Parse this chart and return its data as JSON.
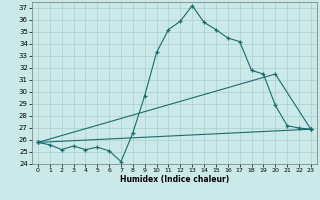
{
  "xlabel": "Humidex (Indice chaleur)",
  "xlim": [
    -0.5,
    23.5
  ],
  "ylim": [
    24,
    37.5
  ],
  "yticks": [
    24,
    25,
    26,
    27,
    28,
    29,
    30,
    31,
    32,
    33,
    34,
    35,
    36,
    37
  ],
  "xticks": [
    0,
    1,
    2,
    3,
    4,
    5,
    6,
    7,
    8,
    9,
    10,
    11,
    12,
    13,
    14,
    15,
    16,
    17,
    18,
    19,
    20,
    21,
    22,
    23
  ],
  "bg_color": "#cce9e9",
  "grid_color": "#aacfcf",
  "line_color": "#1a6b6b",
  "line1_x": [
    0,
    1,
    2,
    3,
    4,
    5,
    6,
    7,
    8,
    9,
    10,
    11,
    12,
    13,
    14,
    15,
    16,
    17,
    18,
    19,
    20,
    21,
    22,
    23
  ],
  "line1_y": [
    25.8,
    25.6,
    25.2,
    25.5,
    25.2,
    25.4,
    25.1,
    24.2,
    26.6,
    29.7,
    33.3,
    35.2,
    35.9,
    37.2,
    35.8,
    35.2,
    34.5,
    34.2,
    31.8,
    31.5,
    28.9,
    27.2,
    27.0,
    26.9
  ],
  "line2_x": [
    0,
    20,
    23
  ],
  "line2_y": [
    25.8,
    31.5,
    26.9
  ],
  "line3_x": [
    0,
    23
  ],
  "line3_y": [
    25.8,
    26.9
  ]
}
